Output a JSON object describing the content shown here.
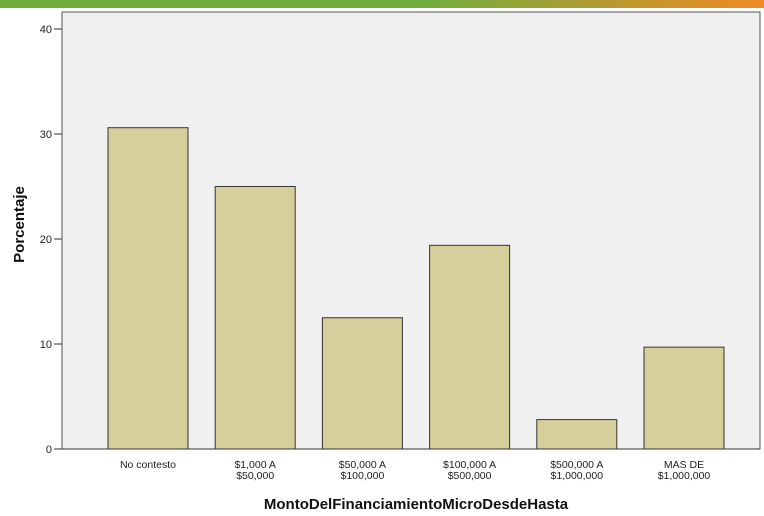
{
  "header_band": {
    "left_color": "#6fae3f",
    "right_color": "#f08a24"
  },
  "chart_data": {
    "type": "bar",
    "categories": [
      [
        "No contesto"
      ],
      [
        "$1,000 A",
        "$50,000"
      ],
      [
        "$50,000 A",
        "$100,000"
      ],
      [
        "$100,000 A",
        "$500,000"
      ],
      [
        "$500,000 A",
        "$1,000,000"
      ],
      [
        "MAS DE",
        "$1,000,000"
      ]
    ],
    "values": [
      30.6,
      25.0,
      12.5,
      19.4,
      2.8,
      9.7
    ],
    "xlabel": "MontoDelFinanciamientoMicroDesdeHasta",
    "ylabel": "Porcentaje",
    "ylim": [
      0,
      40
    ],
    "yticks": [
      0,
      10,
      20,
      30,
      40
    ],
    "grid": false,
    "bar_color": "#d6cf9c",
    "bar_edge": "#333333",
    "plot_bg": "#f0f0f0"
  }
}
